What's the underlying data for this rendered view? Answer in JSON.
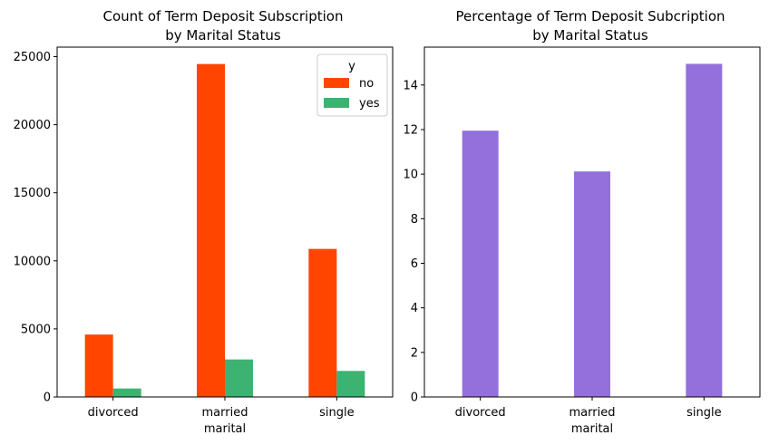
{
  "colors": {
    "no": "#ff4500",
    "yes": "#3cb371",
    "percentage": "#9370db"
  },
  "chart_data": [
    {
      "type": "bar",
      "title_line1": "Count of Term Deposit Subscription",
      "title_line2": "by Marital Status",
      "xlabel": "marital",
      "ylabel": "",
      "categories": [
        "divorced",
        "married",
        "single"
      ],
      "series": [
        {
          "name": "no",
          "values": [
            4585,
            24459,
            10878
          ]
        },
        {
          "name": "yes",
          "values": [
            622,
            2755,
            1912
          ]
        }
      ],
      "ylim": [
        0,
        25700
      ],
      "yticks": [
        0,
        5000,
        10000,
        15000,
        20000,
        25000
      ],
      "legend": {
        "title": "y",
        "placement": "top-right"
      },
      "grid": false
    },
    {
      "type": "bar",
      "title_line1": "Percentage of Term Deposit Subcription",
      "title_line2": "by Marital Status",
      "xlabel": "marital",
      "ylabel": "",
      "categories": [
        "divorced",
        "married",
        "single"
      ],
      "values": [
        11.95,
        10.12,
        14.95
      ],
      "ylim": [
        0,
        15.7
      ],
      "yticks": [
        0,
        2,
        4,
        6,
        8,
        10,
        12,
        14
      ],
      "grid": false
    }
  ]
}
